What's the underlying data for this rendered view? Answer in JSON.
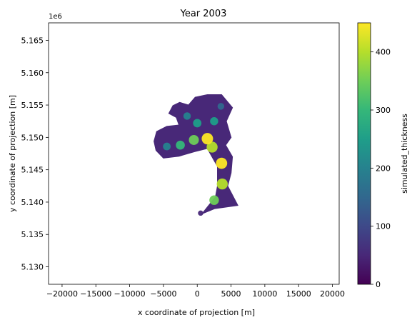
{
  "chart_data": {
    "type": "heatmap",
    "title": "Year 2003",
    "xlabel": "x coordinate of projection [m]",
    "ylabel": "y coordinate of projection [m]",
    "y_offset_label": "1e6",
    "xlim": [
      -22000,
      21000
    ],
    "ylim": [
      5127300,
      5167700
    ],
    "x_ticks": [
      -20000,
      -15000,
      -10000,
      -5000,
      0,
      5000,
      10000,
      15000,
      20000
    ],
    "x_tick_labels": [
      "−20000",
      "−15000",
      "−10000",
      "−5000",
      "0",
      "5000",
      "10000",
      "15000",
      "20000"
    ],
    "y_ticks": [
      5130000,
      5135000,
      5140000,
      5145000,
      5150000,
      5155000,
      5160000,
      5165000
    ],
    "y_tick_labels": [
      "5.130",
      "5.135",
      "5.140",
      "5.145",
      "5.150",
      "5.155",
      "5.160",
      "5.165"
    ],
    "colorbar": {
      "label": "simulated_thickness",
      "range": [
        0,
        450
      ],
      "ticks": [
        0,
        100,
        200,
        300,
        400
      ],
      "tick_labels": [
        "0",
        "100",
        "200",
        "300",
        "400"
      ],
      "colormap": [
        "#440154",
        "#482878",
        "#3e4989",
        "#31688e",
        "#26828e",
        "#1f9e89",
        "#35b779",
        "#6ece58",
        "#b5de2b",
        "#fde725"
      ]
    },
    "glacier_extent": [
      [
        2600,
        5139000
      ],
      [
        6000,
        5139500
      ],
      [
        4500,
        5142500
      ],
      [
        5000,
        5144500
      ],
      [
        5200,
        5147000
      ],
      [
        4200,
        5148800
      ],
      [
        5000,
        5150000
      ],
      [
        4300,
        5152500
      ],
      [
        5200,
        5154600
      ],
      [
        3600,
        5156600
      ],
      [
        1500,
        5156600
      ],
      [
        -300,
        5156200
      ],
      [
        -1300,
        5155000
      ],
      [
        -2600,
        5155400
      ],
      [
        -3600,
        5154900
      ],
      [
        -4200,
        5153700
      ],
      [
        -3100,
        5153100
      ],
      [
        -2700,
        5151900
      ],
      [
        -4500,
        5151700
      ],
      [
        -6000,
        5150900
      ],
      [
        -6400,
        5149400
      ],
      [
        -6100,
        5148000
      ],
      [
        -5000,
        5146800
      ],
      [
        -2700,
        5147100
      ],
      [
        -400,
        5147800
      ],
      [
        1500,
        5148300
      ],
      [
        3000,
        5145500
      ],
      [
        3000,
        5142500
      ],
      [
        2700,
        5140800
      ],
      [
        700,
        5138200
      ]
    ],
    "thickness_profile": [
      {
        "x": 500,
        "y": 5138300,
        "thickness": 60
      },
      {
        "x": 2500,
        "y": 5140300,
        "thickness": 330
      },
      {
        "x": 3700,
        "y": 5142800,
        "thickness": 420
      },
      {
        "x": 3600,
        "y": 5146000,
        "thickness": 440
      },
      {
        "x": 2200,
        "y": 5148500,
        "thickness": 420
      },
      {
        "x": 1500,
        "y": 5149800,
        "thickness": 450
      },
      {
        "x": -500,
        "y": 5149600,
        "thickness": 360
      },
      {
        "x": -2500,
        "y": 5148800,
        "thickness": 300
      },
      {
        "x": -4500,
        "y": 5148600,
        "thickness": 220
      },
      {
        "x": 0,
        "y": 5152200,
        "thickness": 260
      },
      {
        "x": -1500,
        "y": 5153300,
        "thickness": 200
      },
      {
        "x": 2500,
        "y": 5152500,
        "thickness": 240
      },
      {
        "x": 3500,
        "y": 5154800,
        "thickness": 150
      }
    ]
  }
}
